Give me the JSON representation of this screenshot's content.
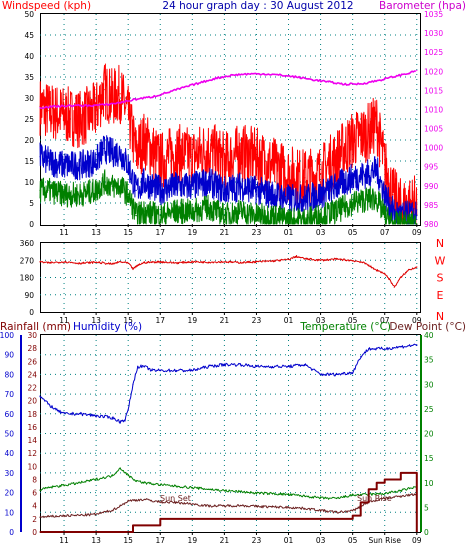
{
  "colors": {
    "wind_gust": "#ff0000",
    "wind_avg": "#0000cc",
    "wind_low": "#008000",
    "barometer": "#ee00ee",
    "wind_dir": "#dd0000",
    "rain": "#800000",
    "humidity": "#0000cc",
    "temperature": "#008000",
    "dew_point": "#6b2020",
    "header_red": "#ff0000",
    "header_blue": "#0000aa",
    "header_magenta": "#cc00cc",
    "header_green": "#008000",
    "axis_text": "#000000",
    "grid": "#008080"
  },
  "chart_data": [
    {
      "type": "line",
      "panel": "wind-baro",
      "title": "24 hour graph day : 30 August 2012",
      "ylabel_left": "Windspeed (kph)",
      "ylabel_right": "Barometer (hpa)",
      "x_ticks": [
        "11",
        "13",
        "15",
        "17",
        "19",
        "21",
        "23",
        "01",
        "03",
        "05",
        "07",
        "09"
      ],
      "y_left_ticks": [
        "0",
        "5",
        "10",
        "15",
        "20",
        "25",
        "30",
        "35",
        "40",
        "45",
        "50"
      ],
      "y_right_ticks": [
        "980",
        "985",
        "990",
        "995",
        "1000",
        "1005",
        "1010",
        "1015",
        "1020",
        "1025",
        "1030",
        "1035"
      ],
      "ylim_left": [
        0,
        50
      ],
      "ylim_right": [
        980,
        1035
      ],
      "grid": true,
      "series": [
        {
          "name": "Windspeed gust",
          "color_key": "wind_gust",
          "x_hours": [
            9.5,
            10,
            11,
            12,
            13,
            13.5,
            14,
            14.5,
            15,
            15.5,
            16,
            17,
            18,
            19,
            20,
            21,
            22,
            23,
            24,
            25,
            26,
            27,
            28,
            28.5,
            29,
            30,
            30.5,
            31,
            31.5,
            32,
            33
          ],
          "values": [
            28,
            27,
            26,
            25,
            27,
            32,
            30,
            31,
            26,
            17,
            20,
            15,
            17,
            16,
            18,
            15,
            17,
            16,
            14,
            12,
            11,
            12,
            16,
            18,
            20,
            22,
            24,
            14,
            7,
            4,
            5
          ]
        },
        {
          "name": "Windspeed average",
          "color_key": "wind_avg",
          "x_hours": [
            9.5,
            10,
            11,
            12,
            13,
            13.5,
            14,
            14.5,
            15,
            15.5,
            16,
            17,
            18,
            19,
            20,
            21,
            22,
            23,
            24,
            25,
            26,
            27,
            28,
            28.5,
            29,
            30,
            30.5,
            31,
            31.5,
            32,
            33
          ],
          "values": [
            16,
            15,
            14,
            14,
            15,
            18,
            17,
            17,
            14,
            8,
            10,
            8,
            9,
            9,
            10,
            8,
            9,
            8,
            7,
            6,
            6,
            7,
            9,
            10,
            11,
            12,
            13,
            7,
            3,
            2,
            2
          ]
        },
        {
          "name": "Windspeed low",
          "color_key": "wind_low",
          "x_hours": [
            9.5,
            10,
            11,
            12,
            13,
            13.5,
            14,
            14.5,
            15,
            15.5,
            16,
            17,
            18,
            19,
            20,
            21,
            22,
            23,
            24,
            25,
            26,
            27,
            28,
            28.5,
            29,
            30,
            30.5,
            31,
            31.5,
            32,
            33
          ],
          "values": [
            8,
            8,
            7,
            7,
            8,
            10,
            9,
            9,
            7,
            2,
            3,
            2,
            3,
            3,
            4,
            2,
            3,
            2,
            2,
            1,
            1,
            2,
            3,
            4,
            5,
            6,
            6,
            2,
            0,
            0,
            0
          ]
        },
        {
          "name": "Barometer",
          "axis": "right",
          "color_key": "barometer",
          "x_hours": [
            9.5,
            10.5,
            11.5,
            12.5,
            13.5,
            14.5,
            15.5,
            16.5,
            17.5,
            18.5,
            19.5,
            20.5,
            21.5,
            22.5,
            23.5,
            24.5,
            25.5,
            26.5,
            27.5,
            28.5,
            29.5,
            30.5,
            31.5,
            32.5,
            33
          ],
          "values": [
            1010.5,
            1010.8,
            1011,
            1011,
            1011.2,
            1011.8,
            1012.7,
            1013.3,
            1014.5,
            1015.8,
            1017,
            1018.2,
            1019,
            1019.3,
            1019.3,
            1019,
            1018.5,
            1017.8,
            1017.2,
            1016.6,
            1016.7,
            1017.5,
            1018.5,
            1019.5,
            1020.2
          ]
        }
      ]
    },
    {
      "type": "line",
      "panel": "wind-direction",
      "x_ticks": [
        "11",
        "13",
        "15",
        "17",
        "19",
        "21",
        "23",
        "01",
        "03",
        "05",
        "07",
        "09"
      ],
      "y_left_ticks": [
        "0",
        "90",
        "180",
        "270",
        "360"
      ],
      "y_right_ticks": [
        "N",
        "W",
        "S",
        "E",
        "N"
      ],
      "ylim": [
        0,
        360
      ],
      "grid": true,
      "series": [
        {
          "name": "Wind direction",
          "color_key": "wind_dir",
          "x_hours": [
            9.5,
            10,
            11,
            12,
            13,
            14,
            14.5,
            15,
            15.3,
            15.7,
            16,
            17,
            18,
            19,
            20,
            21,
            22,
            23,
            24,
            25,
            25.5,
            26,
            27,
            28,
            29,
            29.5,
            30,
            30.3,
            30.6,
            31,
            31.3,
            31.6,
            32,
            32.5,
            33
          ],
          "values": [
            262,
            256,
            262,
            254,
            260,
            250,
            262,
            255,
            225,
            248,
            258,
            262,
            256,
            262,
            260,
            262,
            258,
            262,
            266,
            274,
            290,
            278,
            270,
            276,
            268,
            262,
            245,
            225,
            215,
            200,
            170,
            130,
            180,
            220,
            235
          ]
        }
      ]
    },
    {
      "type": "line",
      "panel": "rain-humidity-temp",
      "ylabel_left": "Rainfall (mm)",
      "ylabel_left2": "Humidity (%)",
      "ylabel_right": "Temperature (°C)",
      "ylabel_right2": "Dew Point (°C)",
      "x_ticks": [
        "11",
        "13",
        "15",
        "17",
        "19",
        "21",
        "23",
        "01",
        "03",
        "05",
        "Sun Rise",
        "09"
      ],
      "humidity_ticks": [
        "0",
        "10",
        "20",
        "30",
        "40",
        "50",
        "60",
        "70",
        "80",
        "90",
        "100"
      ],
      "rain_ticks": [
        "0",
        "2",
        "4",
        "6",
        "8",
        "10",
        "12",
        "14",
        "16",
        "18",
        "20",
        "22",
        "24",
        "26",
        "28",
        "30"
      ],
      "temp_ticks": [
        "0",
        "5",
        "10",
        "15",
        "20",
        "25",
        "30",
        "35",
        "40"
      ],
      "ylim_humidity": [
        0,
        100
      ],
      "ylim_rain": [
        0,
        30
      ],
      "ylim_temp": [
        0,
        40
      ],
      "annotations": [
        "Sun Set",
        "Sun Rise"
      ],
      "grid": true,
      "series": [
        {
          "name": "Humidity",
          "axis": "humidity",
          "color_key": "humidity",
          "x_hours": [
            9.5,
            10,
            10.5,
            11,
            12,
            13,
            14,
            14.5,
            14.8,
            15,
            15.3,
            15.6,
            16,
            16.5,
            17,
            18,
            19,
            20,
            21,
            22,
            23,
            24,
            25,
            26,
            27,
            28,
            29,
            29.5,
            30,
            31,
            32,
            33
          ],
          "values": [
            69,
            65,
            62,
            60,
            60,
            59,
            58,
            56,
            57,
            62,
            75,
            84,
            84,
            82,
            82,
            82,
            82,
            84,
            85,
            85,
            84,
            84,
            84,
            85,
            80,
            80,
            81,
            89,
            93,
            93,
            94,
            95
          ]
        },
        {
          "name": "Temperature",
          "axis": "temp",
          "color_key": "temperature",
          "x_hours": [
            9.5,
            10,
            11,
            12,
            13,
            14,
            14.5,
            15,
            15.5,
            16,
            17,
            18,
            19,
            20,
            21,
            22,
            23,
            24,
            25,
            26,
            27,
            28,
            29,
            30,
            31,
            32,
            33
          ],
          "values": [
            8.5,
            9,
            9.5,
            10,
            10.7,
            11.4,
            13,
            11.5,
            10.4,
            10,
            9.6,
            9.3,
            9,
            8.7,
            8.4,
            8.2,
            7.9,
            7.8,
            7.6,
            7.3,
            6.9,
            6.8,
            7.5,
            7.6,
            7.8,
            8.4,
            9.2
          ]
        },
        {
          "name": "Dew Point",
          "axis": "temp",
          "color_key": "dew_point",
          "x_hours": [
            9.5,
            10,
            11,
            12,
            13,
            14,
            14.5,
            15,
            15.5,
            16,
            17,
            18,
            19,
            20,
            21,
            22,
            23,
            24,
            25,
            26,
            27,
            28,
            29,
            30,
            31,
            32,
            33
          ],
          "values": [
            3,
            3.1,
            3.3,
            3.4,
            3.6,
            4.4,
            5.3,
            6.3,
            6.5,
            6.6,
            6.1,
            6,
            5.7,
            5.3,
            5.3,
            5.4,
            5.2,
            5.1,
            5,
            4.8,
            4.4,
            4,
            4.3,
            6.1,
            6.8,
            7.3,
            7.7
          ]
        },
        {
          "name": "Rainfall",
          "axis": "rain",
          "color_key": "rain",
          "step": true,
          "x_hours": [
            9.5,
            14.5,
            15.3,
            16.5,
            17,
            19,
            23,
            24,
            27,
            28,
            29,
            29.5,
            30,
            30.5,
            31,
            31.5,
            32,
            32.5,
            33,
            33
          ],
          "values": [
            0,
            0,
            1,
            1,
            2,
            2,
            2,
            2,
            2,
            2,
            2.5,
            4.5,
            6.5,
            7.5,
            8,
            8,
            9,
            9,
            9,
            0
          ]
        }
      ]
    }
  ]
}
